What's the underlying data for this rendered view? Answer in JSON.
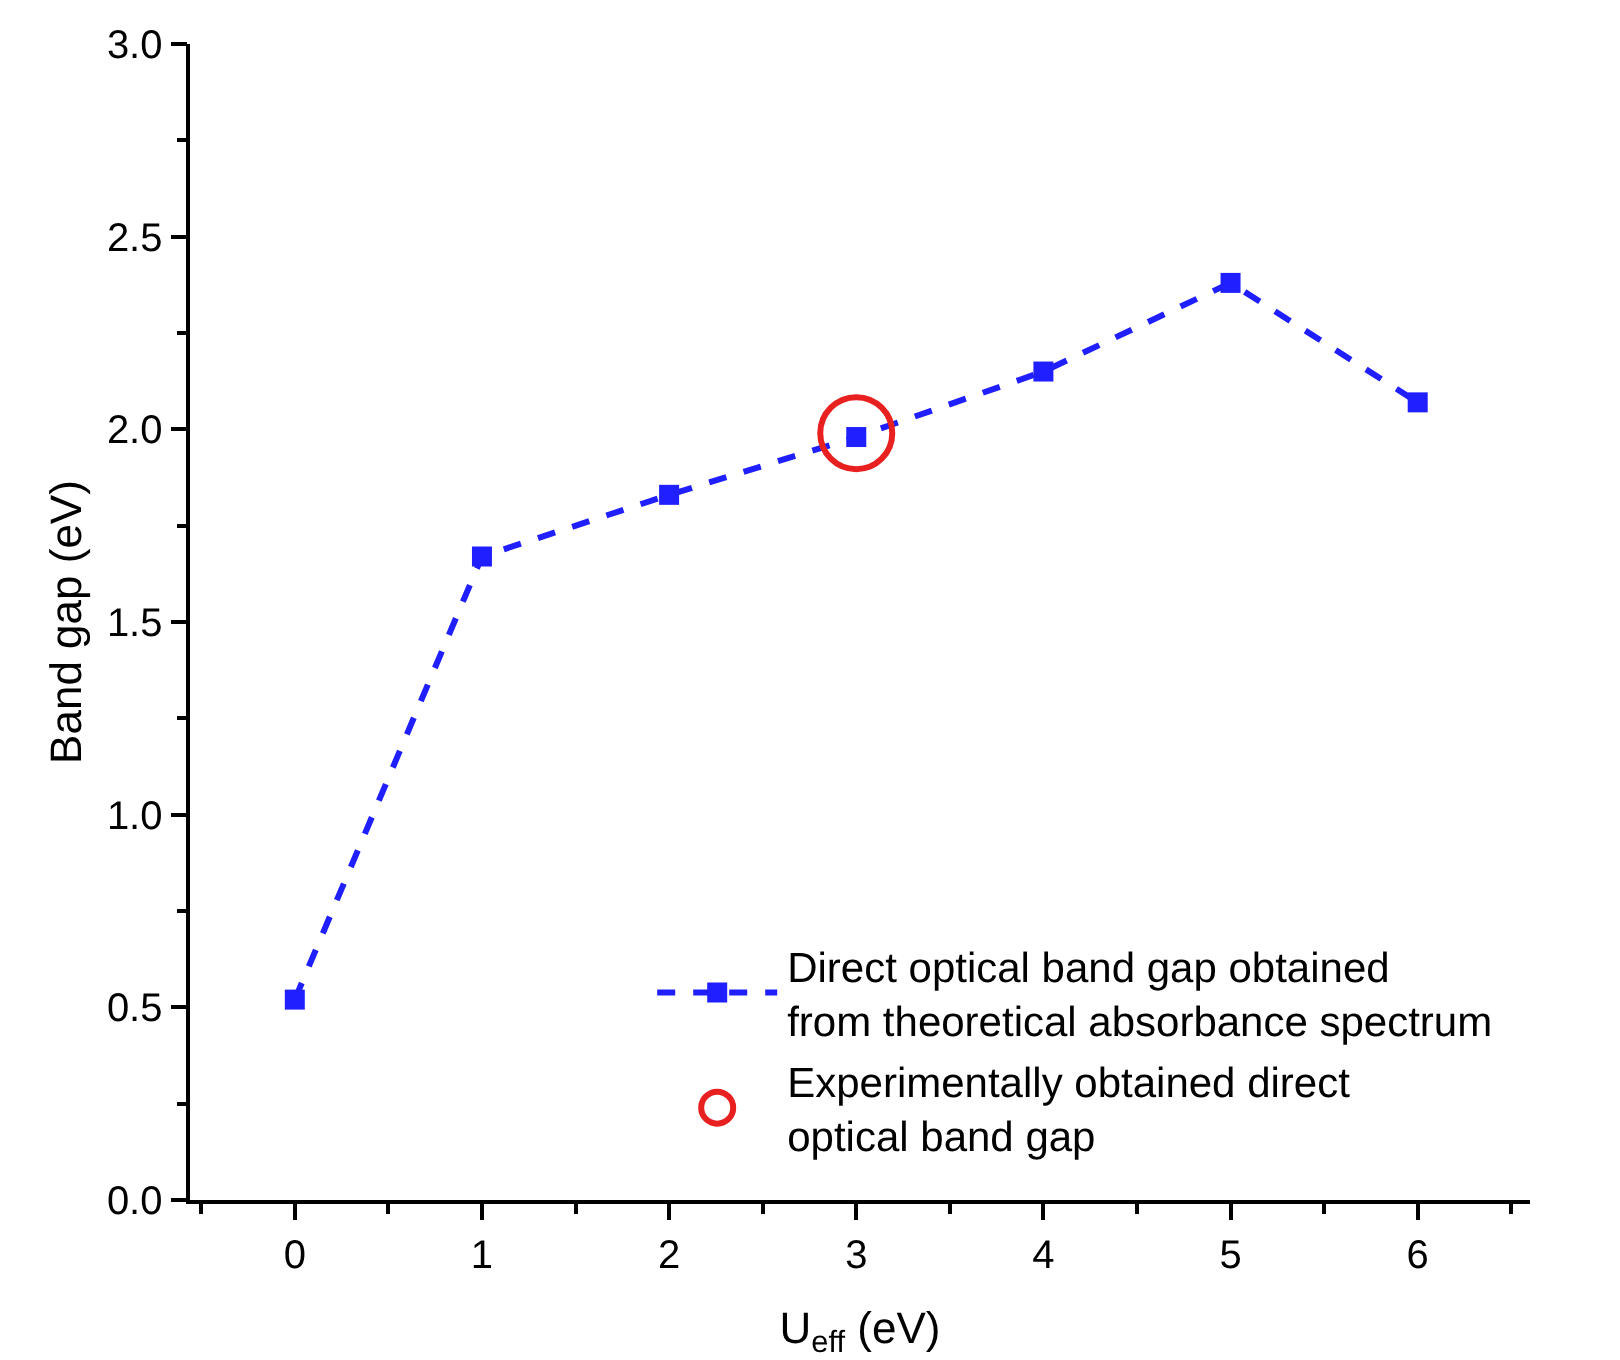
{
  "chart_data": {
    "type": "line",
    "xlabel": "U$_{eff}$ (eV)",
    "ylabel": "Band gap (eV)",
    "x": [
      0,
      1,
      2,
      3,
      4,
      5,
      6
    ],
    "series": [
      {
        "name": "Direct optical band gap obtained\nfrom theoretical absorbance spectrum",
        "color": "#1f1fff",
        "values": [
          0.52,
          1.67,
          1.83,
          1.98,
          2.15,
          2.38,
          2.07
        ],
        "marker": "square",
        "line_style": "dashed"
      },
      {
        "type": "scatter",
        "name": "Experimentally obtained direct\noptical band gap",
        "color": "#e8201f",
        "x": [
          3
        ],
        "values": [
          1.99
        ],
        "marker": "circle"
      }
    ],
    "xlim": [
      -0.56,
      6.6
    ],
    "xticks": [
      0,
      1,
      2,
      3,
      4,
      5,
      6
    ],
    "ylim": [
      0,
      3
    ],
    "yticks": [
      {
        "value": 0,
        "label": "0.0"
      },
      {
        "value": 0.5,
        "label": "0.5"
      },
      {
        "value": 1,
        "label": "1.0"
      },
      {
        "value": 1.5,
        "label": "1.5"
      },
      {
        "value": 2,
        "label": "2.0"
      },
      {
        "value": 2.5,
        "label": "2.5"
      },
      {
        "value": 3,
        "label": "3.0"
      }
    ],
    "grid": false,
    "legend": "bottom right"
  }
}
